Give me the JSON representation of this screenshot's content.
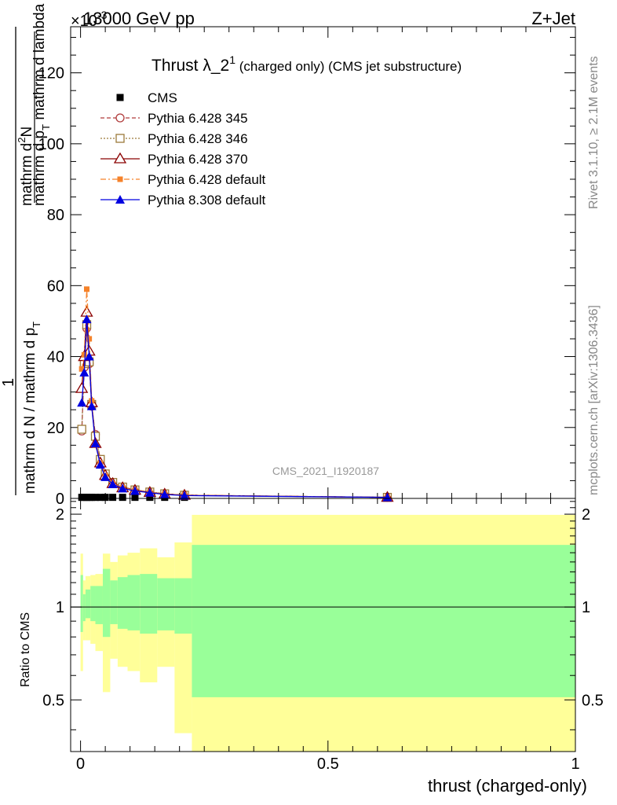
{
  "header": {
    "energy_label": "13000 GeV pp",
    "process_label": "Z+Jet",
    "exponent_label": "×10",
    "exponent_sup": "-3"
  },
  "side_labels": {
    "rivet": "Rivet 3.1.10, ≥ 2.1M events",
    "mcplots": "mcplots.cern.ch [arXiv:1306.3436]"
  },
  "watermark": "CMS_2021_I1920187",
  "colors": {
    "cms": "#000000",
    "p345": "#b03a3a",
    "p346": "#9c7a3a",
    "p370": "#8b0000",
    "p6def": "#f5822a",
    "p8def": "#0000e0",
    "band_inner": "#99ff99",
    "band_outer": "#ffff99"
  },
  "chart_data": [
    {
      "type": "line",
      "title": "Thrust λ_2",
      "title_sup": "1",
      "title_suffix": " (charged only) (CMS jet substructure)",
      "xlabel": "",
      "ylabel_numer_top": "1",
      "ylabel_numer": "mathrm d",
      "ylabel_numer_sup": "2",
      "ylabel_numer_rest": "N",
      "ylabel_denom_top": "mathrm d p",
      "ylabel_denom_sub": "T",
      "ylabel_denom_rest": " mathrm d lambda",
      "ylabel_denom_prefix": "mathrm d N / mathrm d p",
      "ylabel_denom_prefix_sub": "T",
      "y_scale_exponent": -3,
      "xlim": [
        -0.02,
        1.0
      ],
      "ylim": [
        0,
        133
      ],
      "y_ticks": [
        0,
        20,
        40,
        60,
        80,
        100,
        120
      ],
      "legend_position": "top-left",
      "x": [
        0.0025,
        0.0075,
        0.0125,
        0.0175,
        0.0225,
        0.03,
        0.04,
        0.05,
        0.065,
        0.085,
        0.11,
        0.14,
        0.17,
        0.21,
        0.62
      ],
      "series": [
        {
          "name": "CMS",
          "key": "cms",
          "style": "solid-square-marker",
          "values": [
            0.3,
            0.3,
            0.3,
            0.3,
            0.3,
            0.3,
            0.3,
            0.3,
            0.3,
            0.3,
            0.3,
            0.3,
            0.3,
            0.3,
            0.3
          ]
        },
        {
          "name": "Pythia 6.428 345",
          "key": "p345",
          "style": "dashed-open-circle",
          "values": [
            19,
            37,
            48,
            38,
            26,
            18,
            11,
            6.8,
            4.5,
            3.2,
            2.4,
            1.8,
            1.3,
            0.9,
            0.3
          ]
        },
        {
          "name": "Pythia 6.428 346",
          "key": "p346",
          "style": "dotted-open-square",
          "values": [
            19.5,
            38,
            49,
            38.5,
            26.5,
            17.5,
            11,
            6.9,
            4.5,
            3.2,
            2.4,
            1.8,
            1.3,
            0.9,
            0.3
          ]
        },
        {
          "name": "Pythia 6.428 370",
          "key": "p370",
          "style": "solid-open-triangle",
          "values": [
            31,
            40,
            52.5,
            41.5,
            27,
            15.5,
            10,
            6.5,
            4.2,
            3.0,
            2.3,
            1.7,
            1.2,
            0.9,
            0.3
          ]
        },
        {
          "name": "Pythia 6.428 default",
          "key": "p6def",
          "style": "dashdot-solid-square",
          "values": [
            36.5,
            40.5,
            59,
            45,
            27.5,
            15,
            10,
            6.4,
            4.2,
            3.0,
            2.2,
            1.7,
            1.2,
            0.9,
            0.3
          ]
        },
        {
          "name": "Pythia 8.308 default",
          "key": "p8def",
          "style": "solid-filled-triangle",
          "values": [
            27,
            35.5,
            50.5,
            40,
            26,
            15.5,
            9.5,
            6.0,
            4.0,
            2.8,
            2.1,
            1.6,
            1.1,
            0.8,
            0.3
          ]
        }
      ]
    },
    {
      "type": "area",
      "title": "",
      "xlabel": "thrust (charged-only)",
      "ylabel": "Ratio to CMS",
      "xlim": [
        -0.02,
        1.0
      ],
      "ylim": [
        0.34,
        2.25
      ],
      "x_ticks": [
        0,
        0.5,
        1
      ],
      "x_tick_labels": [
        "0",
        "0.5",
        "1"
      ],
      "y_ticks": [
        0.5,
        1,
        2
      ],
      "y_tick_labels": [
        "0.5",
        "1",
        "2"
      ],
      "reference_line": 1,
      "bins": [
        [
          0.0,
          0.005
        ],
        [
          0.005,
          0.01
        ],
        [
          0.01,
          0.02
        ],
        [
          0.02,
          0.03
        ],
        [
          0.03,
          0.045
        ],
        [
          0.045,
          0.06
        ],
        [
          0.06,
          0.075
        ],
        [
          0.075,
          0.095
        ],
        [
          0.095,
          0.12
        ],
        [
          0.12,
          0.155
        ],
        [
          0.155,
          0.19
        ],
        [
          0.19,
          0.225
        ],
        [
          0.225,
          1.0
        ]
      ],
      "inner_band": [
        [
          0.83,
          1.27
        ],
        [
          0.9,
          1.1
        ],
        [
          0.92,
          1.14
        ],
        [
          0.9,
          1.17
        ],
        [
          0.88,
          1.17
        ],
        [
          0.8,
          1.33
        ],
        [
          0.88,
          1.22
        ],
        [
          0.85,
          1.25
        ],
        [
          0.84,
          1.27
        ],
        [
          0.82,
          1.28
        ],
        [
          0.84,
          1.24
        ],
        [
          0.82,
          1.24
        ],
        [
          0.51,
          1.59
        ]
      ],
      "outer_band": [
        [
          0.62,
          1.49
        ],
        [
          0.78,
          1.22
        ],
        [
          0.78,
          1.26
        ],
        [
          0.76,
          1.27
        ],
        [
          0.72,
          1.28
        ],
        [
          0.53,
          1.49
        ],
        [
          0.68,
          1.4
        ],
        [
          0.64,
          1.47
        ],
        [
          0.62,
          1.5
        ],
        [
          0.57,
          1.55
        ],
        [
          0.64,
          1.45
        ],
        [
          0.39,
          1.62
        ],
        [
          0.34,
          1.99
        ]
      ]
    }
  ]
}
